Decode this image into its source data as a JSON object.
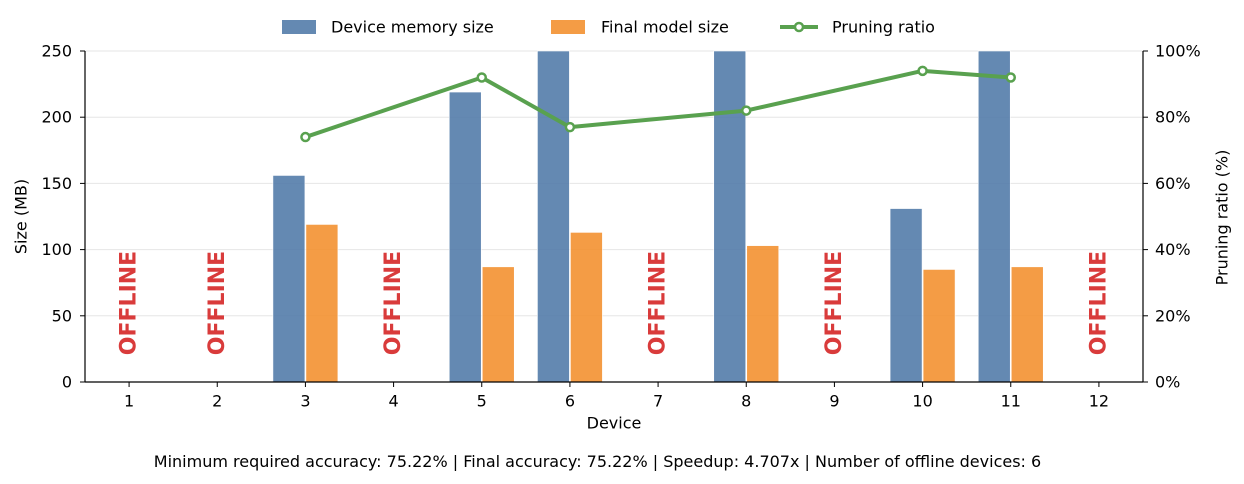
{
  "chart_data": {
    "type": "bar",
    "categories": [
      "1",
      "2",
      "3",
      "4",
      "5",
      "6",
      "7",
      "8",
      "9",
      "10",
      "11",
      "12"
    ],
    "xlabel": "Device",
    "ylabel": "Size (MB)",
    "y2label": "Pruning ratio (%)",
    "ylim": [
      0,
      250
    ],
    "y2lim": [
      0,
      100
    ],
    "yticks": [
      0,
      50,
      100,
      150,
      200,
      250
    ],
    "y2ticks": [
      0,
      20,
      40,
      60,
      80,
      100
    ],
    "y2tick_suffix": "%",
    "grid": true,
    "legend_position": "top-center",
    "series": [
      {
        "name": "Device memory size",
        "kind": "bar",
        "color": "#4e79a7",
        "values": [
          null,
          null,
          156,
          null,
          219,
          250,
          null,
          250,
          null,
          131,
          250,
          null
        ]
      },
      {
        "name": "Final model size",
        "kind": "bar",
        "color": "#f28e2b",
        "values": [
          null,
          null,
          119,
          null,
          87,
          113,
          null,
          103,
          null,
          85,
          87,
          null
        ]
      },
      {
        "name": "Pruning ratio",
        "kind": "line",
        "axis": "right",
        "color": "#59a14f",
        "values": [
          null,
          null,
          74,
          null,
          92,
          77,
          null,
          82,
          null,
          94,
          92,
          null
        ]
      }
    ],
    "offline_label": "OFFLINE",
    "offline_devices": [
      "1",
      "2",
      "4",
      "7",
      "9",
      "12"
    ]
  },
  "footer_text": "Minimum required accuracy: 75.22%  |  Final accuracy: 75.22%  |  Speedup: 4.707x  |  Number of offline devices: 6"
}
